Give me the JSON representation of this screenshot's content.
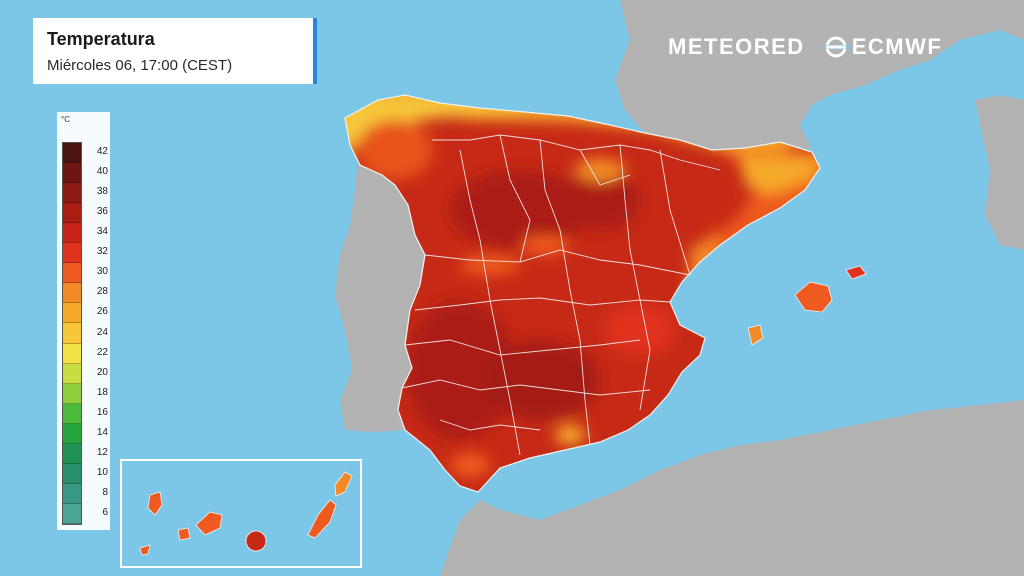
{
  "header": {
    "title": "Temperatura",
    "subtitle": "Miércoles 06, 17:00 (CEST)"
  },
  "logos": {
    "meteored": "METEORED",
    "ecmwf": "ECMWF"
  },
  "legend": {
    "unit": "°C",
    "ticks": [
      "42",
      "40",
      "38",
      "36",
      "34",
      "32",
      "30",
      "28",
      "26",
      "24",
      "22",
      "20",
      "18",
      "16",
      "14",
      "12",
      "10",
      "8",
      "6"
    ],
    "colors": [
      "#4a1410",
      "#6e1712",
      "#8e1a12",
      "#ab1d13",
      "#c8241a",
      "#e0331d",
      "#ee5a1f",
      "#f28a25",
      "#f5a92b",
      "#f7c63a",
      "#f2e047",
      "#c8dd43",
      "#8fcf3e",
      "#4cbb3c",
      "#25a440",
      "#1f9253",
      "#2a8f6e",
      "#3a9886",
      "#4aa596"
    ]
  },
  "map": {
    "icon": "map-of-spain-temperature",
    "colors": {
      "sea": "#7cc7e8",
      "land_neighbours": "#b3b3b3",
      "hot": "#c62a16",
      "very_hot": "#a51f12",
      "warm": "#e8531c",
      "mild": "#f6a52a",
      "borders": "#f2f2f2"
    }
  }
}
